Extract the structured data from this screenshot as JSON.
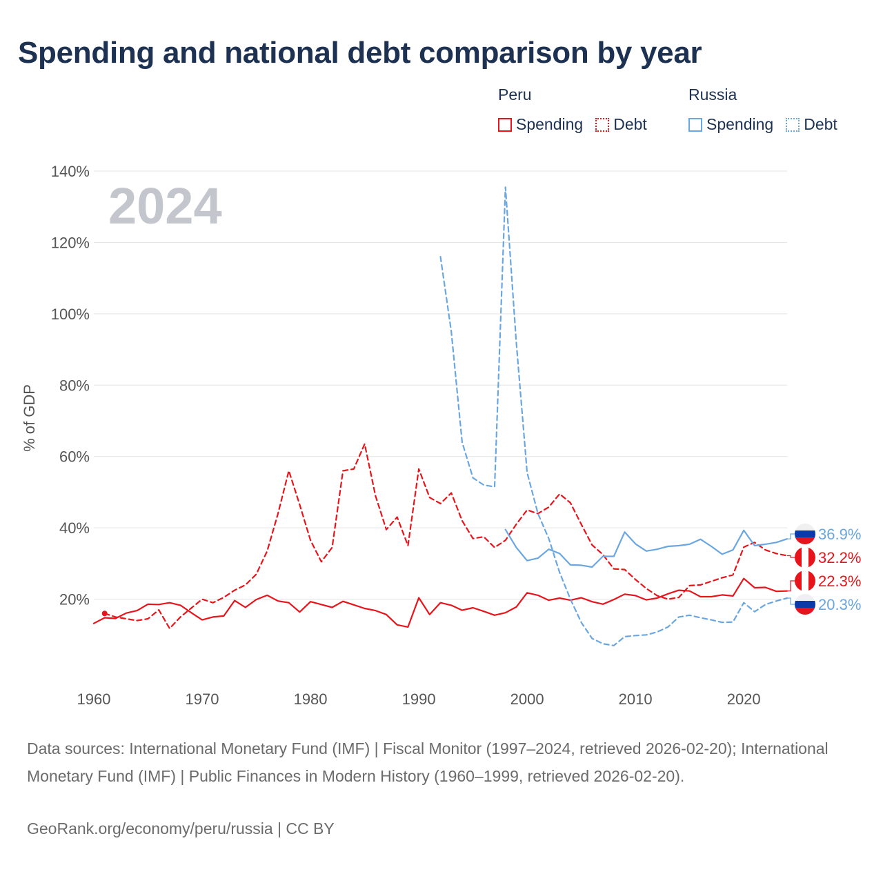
{
  "title": "Spending and national debt comparison by year",
  "legend": {
    "groups": [
      {
        "country": "Peru",
        "color": "#e8141b",
        "items": [
          {
            "label": "Spending",
            "style": "solid"
          },
          {
            "label": "Debt",
            "style": "dotted"
          }
        ]
      },
      {
        "country": "Russia",
        "color": "#6aa6e0",
        "items": [
          {
            "label": "Spending",
            "style": "solid"
          },
          {
            "label": "Debt",
            "style": "dotted"
          }
        ]
      }
    ]
  },
  "chart_data": {
    "type": "line",
    "title": "Spending and national debt comparison by year",
    "year_label": "2024",
    "xlabel": "",
    "ylabel": "% of GDP",
    "xlim": [
      1960,
      2024
    ],
    "ylim": [
      0,
      140
    ],
    "x_ticks": [
      1960,
      1970,
      1980,
      1990,
      2000,
      2010,
      2020
    ],
    "y_ticks": [
      20,
      40,
      60,
      80,
      100,
      120,
      140
    ],
    "y_tick_labels": [
      "20%",
      "40%",
      "60%",
      "80%",
      "100%",
      "120%",
      "140%"
    ],
    "grid": true,
    "series": [
      {
        "name": "Peru Spending",
        "country": "Peru",
        "metric": "Spending",
        "color": "#e8141b",
        "dash": "solid",
        "end_label": "22.3%",
        "x": [
          1960,
          1961,
          1962,
          1963,
          1964,
          1965,
          1966,
          1967,
          1968,
          1969,
          1970,
          1971,
          1972,
          1973,
          1974,
          1975,
          1976,
          1977,
          1978,
          1979,
          1980,
          1981,
          1982,
          1983,
          1984,
          1985,
          1986,
          1987,
          1988,
          1989,
          1990,
          1991,
          1992,
          1993,
          1994,
          1995,
          1996,
          1997,
          1998,
          1999,
          2000,
          2001,
          2002,
          2003,
          2004,
          2005,
          2006,
          2007,
          2008,
          2009,
          2010,
          2011,
          2012,
          2013,
          2014,
          2015,
          2016,
          2017,
          2018,
          2019,
          2020,
          2021,
          2022,
          2023,
          2024
        ],
        "y": [
          13.2,
          14.8,
          14.6,
          16.1,
          16.8,
          18.6,
          18.5,
          19.0,
          18.3,
          16.2,
          14.2,
          15.0,
          15.3,
          19.6,
          17.7,
          19.9,
          21.1,
          19.5,
          19.0,
          16.4,
          19.3,
          18.5,
          17.7,
          19.4,
          18.4,
          17.4,
          16.8,
          15.7,
          12.8,
          12.2,
          20.4,
          15.7,
          19.0,
          18.3,
          16.9,
          17.6,
          16.6,
          15.5,
          16.2,
          17.8,
          21.8,
          21.1,
          19.7,
          20.3,
          19.7,
          20.4,
          19.3,
          18.6,
          19.9,
          21.4,
          21.0,
          19.8,
          20.3,
          21.5,
          22.5,
          22.3,
          20.7,
          20.7,
          21.2,
          20.9,
          25.8,
          23.2,
          23.3,
          22.2,
          22.3
        ]
      },
      {
        "name": "Peru Debt",
        "country": "Peru",
        "metric": "Debt",
        "color": "#e8141b",
        "dash": "dashed",
        "end_label": "32.2%",
        "x": [
          1961,
          1962,
          1963,
          1964,
          1965,
          1966,
          1967,
          1968,
          1969,
          1970,
          1971,
          1972,
          1973,
          1974,
          1975,
          1976,
          1977,
          1978,
          1979,
          1980,
          1981,
          1982,
          1983,
          1984,
          1985,
          1986,
          1987,
          1988,
          1989,
          1990,
          1991,
          1992,
          1993,
          1994,
          1995,
          1996,
          1997,
          1998,
          1999,
          2000,
          2001,
          2002,
          2003,
          2004,
          2005,
          2006,
          2007,
          2008,
          2009,
          2010,
          2011,
          2012,
          2013,
          2014,
          2015,
          2016,
          2017,
          2018,
          2019,
          2020,
          2021,
          2022,
          2023,
          2024
        ],
        "y": [
          16.0,
          15.0,
          14.5,
          14.0,
          14.5,
          17.0,
          11.8,
          15.0,
          17.5,
          20.0,
          19.0,
          20.5,
          22.5,
          24.0,
          27.0,
          33.5,
          44.0,
          56.0,
          46.5,
          36.5,
          30.5,
          34.5,
          56.0,
          56.5,
          63.5,
          49.0,
          39.5,
          43.0,
          35.0,
          56.5,
          48.5,
          46.8,
          49.8,
          42.0,
          37.0,
          37.5,
          34.5,
          36.5,
          41.0,
          45.0,
          44.0,
          45.8,
          49.5,
          47.0,
          41.0,
          35.2,
          32.5,
          28.5,
          28.3,
          25.5,
          23.0,
          21.0,
          20.0,
          20.5,
          23.8,
          24.0,
          25.0,
          26.0,
          26.8,
          34.6,
          35.9,
          33.8,
          32.8,
          32.2
        ]
      },
      {
        "name": "Russia Spending",
        "country": "Russia",
        "metric": "Spending",
        "color": "#6aa6e0",
        "dash": "solid",
        "end_label": "36.9%",
        "x": [
          1998,
          1999,
          2000,
          2001,
          2002,
          2003,
          2004,
          2005,
          2006,
          2007,
          2008,
          2009,
          2010,
          2011,
          2012,
          2013,
          2014,
          2015,
          2016,
          2017,
          2018,
          2019,
          2020,
          2021,
          2022,
          2023,
          2024
        ],
        "y": [
          39.5,
          34.5,
          30.8,
          31.5,
          34.0,
          32.8,
          29.6,
          29.5,
          29.0,
          32.0,
          32.0,
          38.8,
          35.5,
          33.5,
          34.0,
          34.8,
          35.0,
          35.4,
          36.8,
          34.8,
          32.6,
          33.8,
          39.3,
          35.0,
          35.4,
          35.9,
          36.9
        ]
      },
      {
        "name": "Russia Debt",
        "country": "Russia",
        "metric": "Debt",
        "color": "#6aa6e0",
        "dash": "dashed",
        "end_label": "20.3%",
        "x": [
          1992,
          1993,
          1994,
          1995,
          1996,
          1997,
          1998,
          1999,
          2000,
          2001,
          2002,
          2003,
          2004,
          2005,
          2006,
          2007,
          2008,
          2009,
          2010,
          2011,
          2012,
          2013,
          2014,
          2015,
          2016,
          2017,
          2018,
          2019,
          2020,
          2021,
          2022,
          2023,
          2024
        ],
        "y": [
          116.0,
          95.0,
          64.0,
          54.0,
          52.0,
          51.5,
          135.5,
          92.0,
          55.5,
          44.0,
          37.0,
          27.5,
          20.0,
          13.5,
          9.0,
          7.5,
          7.0,
          9.5,
          9.8,
          10.0,
          10.8,
          12.2,
          15.0,
          15.5,
          14.8,
          14.2,
          13.5,
          13.6,
          19.0,
          16.5,
          18.5,
          19.5,
          20.3
        ]
      }
    ]
  },
  "footer": {
    "sources": "Data sources: International Monetary Fund (IMF) | Fiscal Monitor (1997–2024, retrieved 2026-02-20); International Monetary Fund (IMF) | Public Finances in Modern History (1960–1999, retrieved 2026-02-20).",
    "credit": "GeoRank.org/economy/peru/russia | CC BY"
  }
}
